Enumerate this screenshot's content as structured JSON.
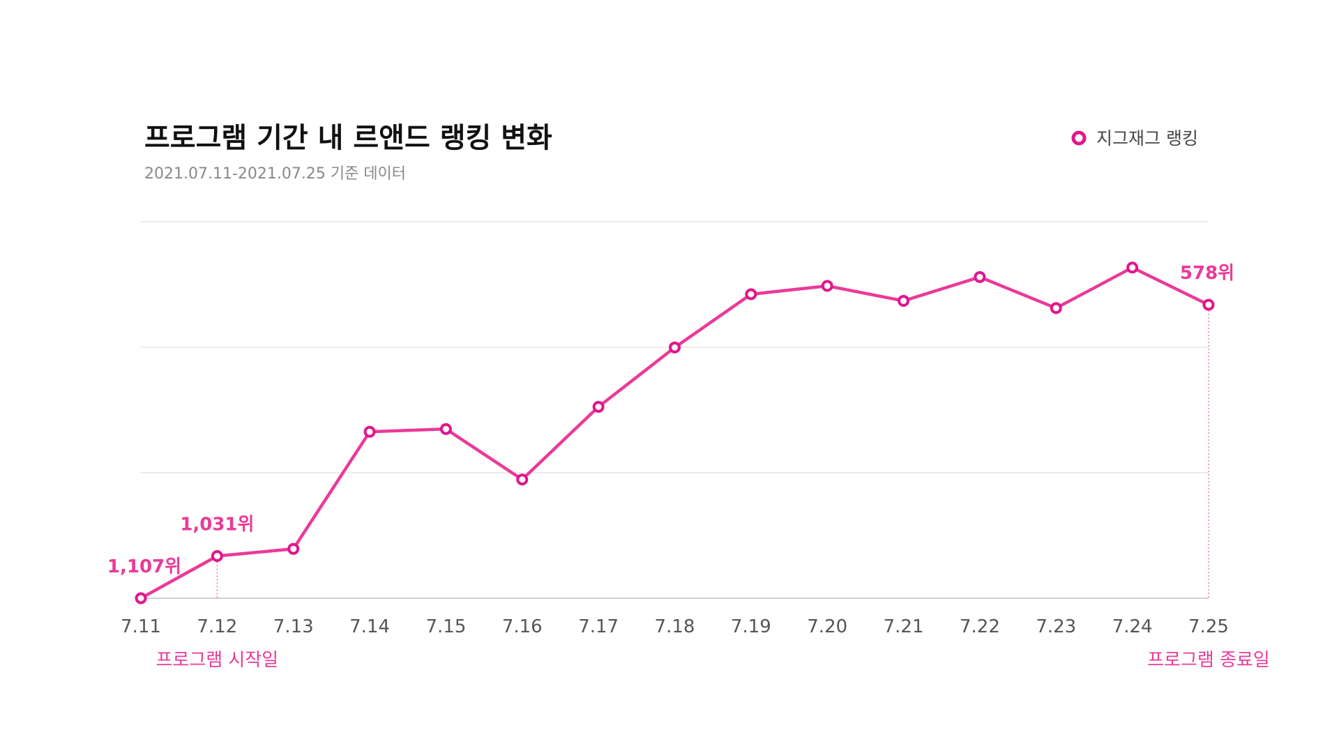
{
  "colors": {
    "accent": "#ea3a98",
    "marker": "#e0168c",
    "grid": "#e6e6e6",
    "axis": "#cfcfcf"
  },
  "chart_data": {
    "type": "line",
    "title": "프로그램 기간 내 르앤드 랭킹 변화",
    "subtitle": "2021.07.11-2021.07.25 기준 데이터",
    "legend": {
      "position": "top-right",
      "label": "지그재그 랭킹"
    },
    "categories": [
      "7.11",
      "7.12",
      "7.13",
      "7.14",
      "7.15",
      "7.16",
      "7.17",
      "7.18",
      "7.19",
      "7.20",
      "7.21",
      "7.22",
      "7.23",
      "7.24",
      "7.25"
    ],
    "series": [
      {
        "name": "지그재그 랭킹",
        "values": [
          1107,
          1031,
          1018,
          807,
          802,
          893,
          762,
          655,
          559,
          544,
          571,
          528,
          584,
          511,
          578
        ]
      }
    ],
    "y_reverse": true,
    "ylim": [
      1107,
      510
    ],
    "grid": true,
    "data_labels": [
      {
        "index": 0,
        "text": "1,107위"
      },
      {
        "index": 1,
        "text": "1,031위"
      },
      {
        "index": 14,
        "text": "578위"
      }
    ],
    "annotations": [
      {
        "index": 1,
        "text": "프로그램 시작일"
      },
      {
        "index": 14,
        "text": "프로그램 종료일"
      }
    ]
  }
}
